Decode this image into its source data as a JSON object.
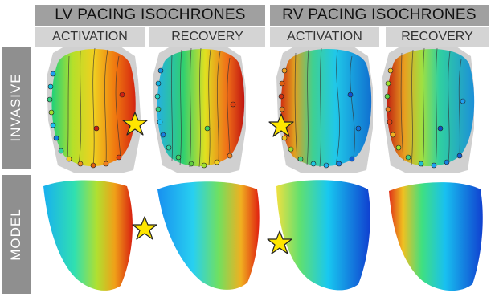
{
  "headers": {
    "lv": "LV PACING ISOCHRONES",
    "rv": "RV PACING ISOCHRONES"
  },
  "subheaders": {
    "lv_activation": "ACTIVATION",
    "lv_recovery": "RECOVERY",
    "rv_activation": "ACTIVATION",
    "rv_recovery": "RECOVERY"
  },
  "rows": {
    "invasive": "INVASIVE",
    "model": "MODEL"
  },
  "colors": {
    "header_bg": "#a0a0a0",
    "subheader_bg": "#d4d4d4",
    "side_bg": "#8f8f8f",
    "star": "#ffe600"
  },
  "panels": [
    {
      "row": "invasive",
      "column": "lv_activation",
      "colormap": "jet",
      "star": "right"
    },
    {
      "row": "invasive",
      "column": "lv_recovery",
      "colormap": "jet",
      "star": "none"
    },
    {
      "row": "invasive",
      "column": "rv_activation",
      "colormap": "jet",
      "star": "left"
    },
    {
      "row": "invasive",
      "column": "rv_recovery",
      "colormap": "jet",
      "star": "none"
    },
    {
      "row": "model",
      "column": "lv_activation",
      "colormap": "jet",
      "star": "right"
    },
    {
      "row": "model",
      "column": "lv_recovery",
      "colormap": "jet",
      "star": "none"
    },
    {
      "row": "model",
      "column": "rv_activation",
      "colormap": "jet",
      "star": "left"
    },
    {
      "row": "model",
      "column": "rv_recovery",
      "colormap": "jet",
      "star": "none"
    }
  ]
}
